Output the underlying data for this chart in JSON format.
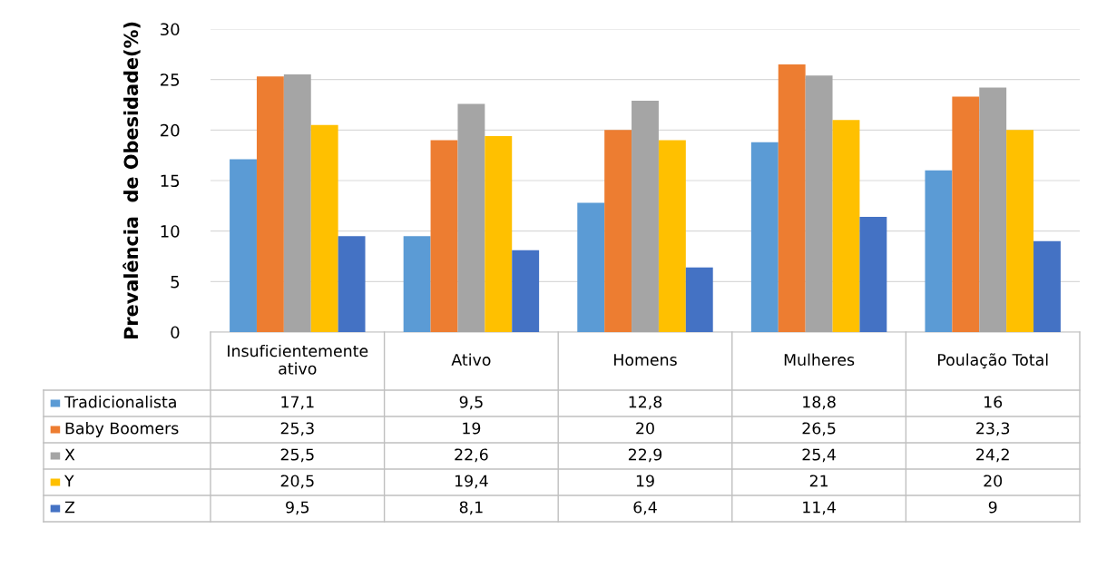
{
  "chart_data": {
    "type": "bar",
    "ylabel": "Prevalência  de Obesidade(%)",
    "categories": [
      "Insuficientemente ativo",
      "Ativo",
      "Homens",
      "Mulheres",
      "Poulação Total"
    ],
    "series": [
      {
        "name": "Tradicionalista",
        "color": "#5b9bd5",
        "values": [
          17.1,
          9.5,
          12.8,
          18.8,
          16
        ],
        "value_labels": [
          "17,1",
          "9,5",
          "12,8",
          "18,8",
          "16"
        ]
      },
      {
        "name": "Baby Boomers",
        "color": "#ed7d31",
        "values": [
          25.3,
          19,
          20,
          26.5,
          23.3
        ],
        "value_labels": [
          "25,3",
          "19",
          "20",
          "26,5",
          "23,3"
        ]
      },
      {
        "name": "X",
        "color": "#a5a5a5",
        "values": [
          25.5,
          22.6,
          22.9,
          25.4,
          24.2
        ],
        "value_labels": [
          "25,5",
          "22,6",
          "22,9",
          "25,4",
          "24,2"
        ]
      },
      {
        "name": "Y",
        "color": "#ffc000",
        "values": [
          20.5,
          19.4,
          19,
          21,
          20
        ],
        "value_labels": [
          "20,5",
          "19,4",
          "19",
          "21",
          "20"
        ]
      },
      {
        "name": "Z",
        "color": "#4472c4",
        "values": [
          9.5,
          8.1,
          6.4,
          11.4,
          9
        ],
        "value_labels": [
          "9,5",
          "8,1",
          "6,4",
          "11,4",
          "9"
        ]
      }
    ],
    "ylim": [
      0,
      30
    ],
    "yticks": [
      0,
      5,
      10,
      15,
      20,
      25,
      30
    ],
    "grid": "y",
    "legend": "bottom left"
  }
}
